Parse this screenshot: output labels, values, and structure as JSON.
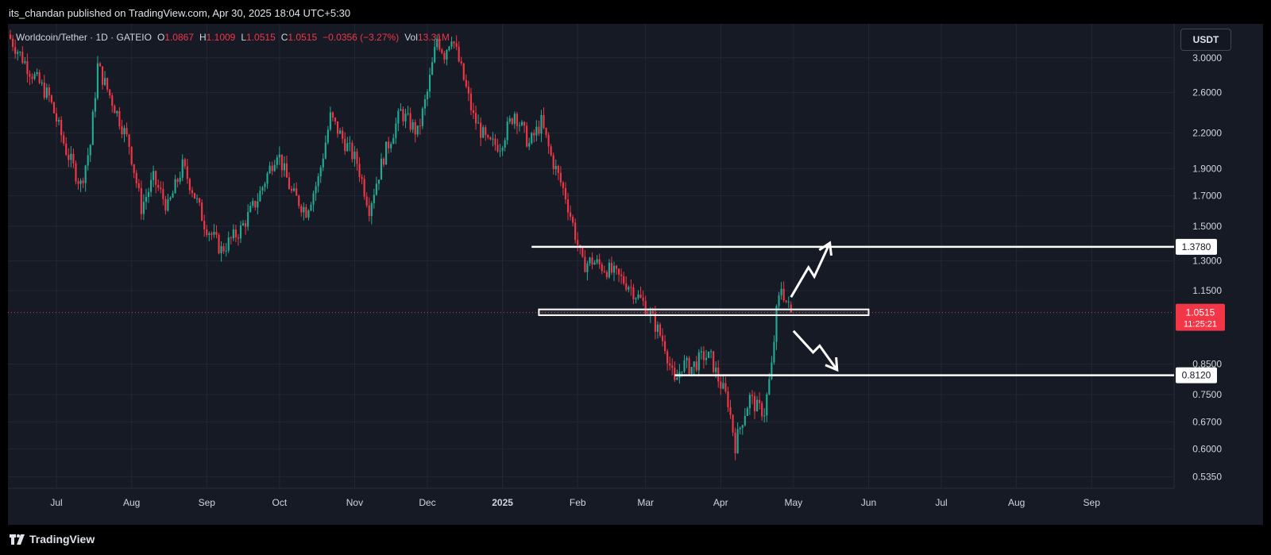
{
  "header": {
    "publisher_line": "its_chandan published on TradingView.com, Apr 30, 2025 18:04 UTC+5:30"
  },
  "legend": {
    "symbol": "Worldcoin/Tether · 1D · GATEIO",
    "open_key": "O",
    "open": "1.0867",
    "high_key": "H",
    "high": "1.1009",
    "low_key": "L",
    "low": "1.0515",
    "close_key": "C",
    "close": "1.0515",
    "change": "−0.0356 (−3.27%)",
    "vol_key": "Vol",
    "vol": "13.31M"
  },
  "currency_badge": "USDT",
  "footer": {
    "brand": "TradingView"
  },
  "colors": {
    "up": "#22ab94",
    "down": "#f23645",
    "background": "#161a25",
    "grid": "#232733",
    "annotation": "#ffffff",
    "price_tag": "#f23645"
  },
  "chart_data": {
    "type": "candlestick",
    "scale": "log",
    "ylim": [
      0.51,
      3.45
    ],
    "y_ticks": [
      "3.0000",
      "2.6000",
      "2.2000",
      "1.9000",
      "1.7000",
      "1.5000",
      "1.3000",
      "1.1500",
      "0.8500",
      "0.7500",
      "0.6700",
      "0.6000",
      "0.5350"
    ],
    "x_ticks": [
      "Jul",
      "Aug",
      "Sep",
      "Oct",
      "Nov",
      "Dec",
      "2025",
      "Feb",
      "Mar",
      "Apr",
      "May",
      "Jun",
      "Jul",
      "Aug",
      "Sep"
    ],
    "x_range": [
      "2024-06-11",
      "2025-10-05"
    ],
    "last_price": {
      "value": 1.0515,
      "label": "1.0515",
      "countdown": "11:25:21"
    },
    "levels": [
      {
        "value": 1.378,
        "label": "1.3780",
        "from": "2025-01-13",
        "to": "2025-10-05"
      },
      {
        "value": 0.812,
        "label": "0.8120",
        "from": "2025-03-13",
        "to": "2025-10-05"
      }
    ],
    "zone": {
      "low": 1.04,
      "high": 1.065,
      "from": "2025-01-16",
      "to": "2025-06-01"
    },
    "anchors": [
      [
        "2024-06-11",
        3.3
      ],
      [
        "2024-06-20",
        2.85
      ],
      [
        "2024-06-28",
        2.55
      ],
      [
        "2024-07-05",
        2.05
      ],
      [
        "2024-07-11",
        1.78
      ],
      [
        "2024-07-15",
        2.1
      ],
      [
        "2024-07-18",
        2.9
      ],
      [
        "2024-07-25",
        2.45
      ],
      [
        "2024-07-31",
        2.1
      ],
      [
        "2024-08-05",
        1.62
      ],
      [
        "2024-08-10",
        1.82
      ],
      [
        "2024-08-16",
        1.62
      ],
      [
        "2024-08-22",
        1.92
      ],
      [
        "2024-08-26",
        1.75
      ],
      [
        "2024-08-31",
        1.52
      ],
      [
        "2024-09-07",
        1.36
      ],
      [
        "2024-09-15",
        1.48
      ],
      [
        "2024-09-22",
        1.68
      ],
      [
        "2024-09-30",
        2.05
      ],
      [
        "2024-10-06",
        1.72
      ],
      [
        "2024-10-12",
        1.6
      ],
      [
        "2024-10-17",
        1.82
      ],
      [
        "2024-10-22",
        2.35
      ],
      [
        "2024-10-27",
        2.15
      ],
      [
        "2024-11-02",
        1.95
      ],
      [
        "2024-11-07",
        1.62
      ],
      [
        "2024-11-13",
        2.0
      ],
      [
        "2024-11-20",
        2.4
      ],
      [
        "2024-11-27",
        2.2
      ],
      [
        "2024-12-01",
        2.6
      ],
      [
        "2024-12-05",
        3.25
      ],
      [
        "2024-12-08",
        3.05
      ],
      [
        "2024-12-11",
        3.3
      ],
      [
        "2024-12-15",
        2.85
      ],
      [
        "2024-12-20",
        2.35
      ],
      [
        "2024-12-26",
        2.1
      ],
      [
        "2024-12-31",
        2.1
      ],
      [
        "2025-01-06",
        2.4
      ],
      [
        "2025-01-12",
        2.1
      ],
      [
        "2025-01-17",
        2.3
      ],
      [
        "2025-01-21",
        2.0
      ],
      [
        "2025-01-27",
        1.7
      ],
      [
        "2025-01-31",
        1.45
      ],
      [
        "2025-02-03",
        1.28
      ],
      [
        "2025-02-07",
        1.3
      ],
      [
        "2025-02-14",
        1.25
      ],
      [
        "2025-02-22",
        1.18
      ],
      [
        "2025-02-26",
        1.12
      ],
      [
        "2025-03-01",
        1.08
      ],
      [
        "2025-03-04",
        1.02
      ],
      [
        "2025-03-09",
        0.92
      ],
      [
        "2025-03-13",
        0.78
      ],
      [
        "2025-03-16",
        0.85
      ],
      [
        "2025-03-20",
        0.84
      ],
      [
        "2025-03-25",
        0.88
      ],
      [
        "2025-03-28",
        0.87
      ],
      [
        "2025-03-31",
        0.8
      ],
      [
        "2025-04-04",
        0.73
      ],
      [
        "2025-04-07",
        0.61
      ],
      [
        "2025-04-10",
        0.68
      ],
      [
        "2025-04-13",
        0.74
      ],
      [
        "2025-04-16",
        0.71
      ],
      [
        "2025-04-19",
        0.7
      ],
      [
        "2025-04-22",
        0.84
      ],
      [
        "2025-04-24",
        1.05
      ],
      [
        "2025-04-26",
        1.17
      ],
      [
        "2025-04-28",
        1.1
      ],
      [
        "2025-04-30",
        1.0515
      ]
    ],
    "annotations": [
      {
        "type": "arrow-up",
        "from": [
          "2025-04-30",
          1.12
        ],
        "to": [
          "2025-05-16",
          1.4
        ]
      },
      {
        "type": "arrow-down",
        "from": [
          "2025-05-01",
          0.975
        ],
        "to": [
          "2025-05-19",
          0.83
        ]
      }
    ]
  }
}
